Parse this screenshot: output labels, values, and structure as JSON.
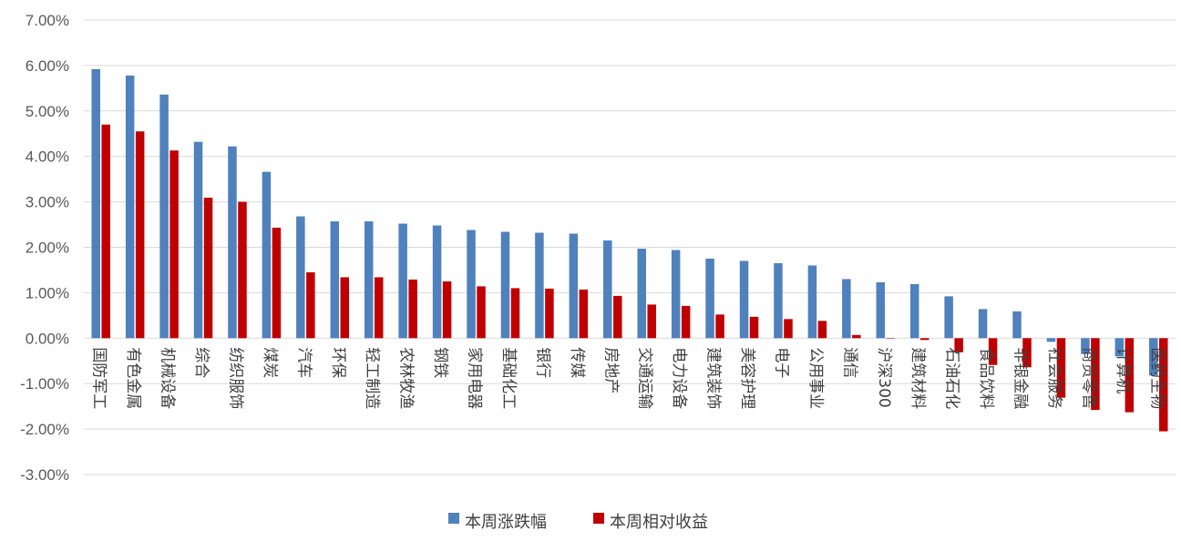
{
  "chart_data": {
    "type": "bar",
    "title": "",
    "xlabel": "",
    "ylabel": "",
    "ylim": [
      -3,
      7
    ],
    "ytick_step": 1,
    "ytick_format": "percent_2dp",
    "grid": true,
    "legend_placement": "bottom-center",
    "categories": [
      "国防军工",
      "有色金属",
      "机械设备",
      "综合",
      "纺织服饰",
      "煤炭",
      "汽车",
      "环保",
      "轻工制造",
      "农林牧渔",
      "钢铁",
      "家用电器",
      "基础化工",
      "银行",
      "传媒",
      "房地产",
      "交通运输",
      "电力设备",
      "建筑装饰",
      "美容护理",
      "电子",
      "公用事业",
      "通信",
      "沪深300",
      "建筑材料",
      "石油石化",
      "食品饮料",
      "非银金融",
      "社会服务",
      "商贸零售",
      "计算机",
      "医药生物"
    ],
    "series": [
      {
        "name": "本周涨跌幅",
        "color": "#4f81bd",
        "values": [
          5.92,
          5.78,
          5.36,
          4.32,
          4.22,
          3.66,
          2.68,
          2.57,
          2.57,
          2.52,
          2.48,
          2.38,
          2.34,
          2.32,
          2.3,
          2.15,
          1.97,
          1.94,
          1.75,
          1.7,
          1.65,
          1.6,
          1.3,
          1.23,
          1.19,
          0.92,
          0.64,
          0.59,
          -0.08,
          -0.35,
          -0.4,
          -0.82
        ]
      },
      {
        "name": "本周相对收益",
        "color": "#c00000",
        "values": [
          4.7,
          4.55,
          4.13,
          3.09,
          3.0,
          2.43,
          1.45,
          1.34,
          1.34,
          1.29,
          1.25,
          1.14,
          1.1,
          1.09,
          1.07,
          0.93,
          0.74,
          0.71,
          0.52,
          0.47,
          0.42,
          0.38,
          0.07,
          0.0,
          -0.04,
          -0.31,
          -0.59,
          -0.64,
          -1.31,
          -1.58,
          -1.63,
          -2.05
        ]
      }
    ]
  }
}
